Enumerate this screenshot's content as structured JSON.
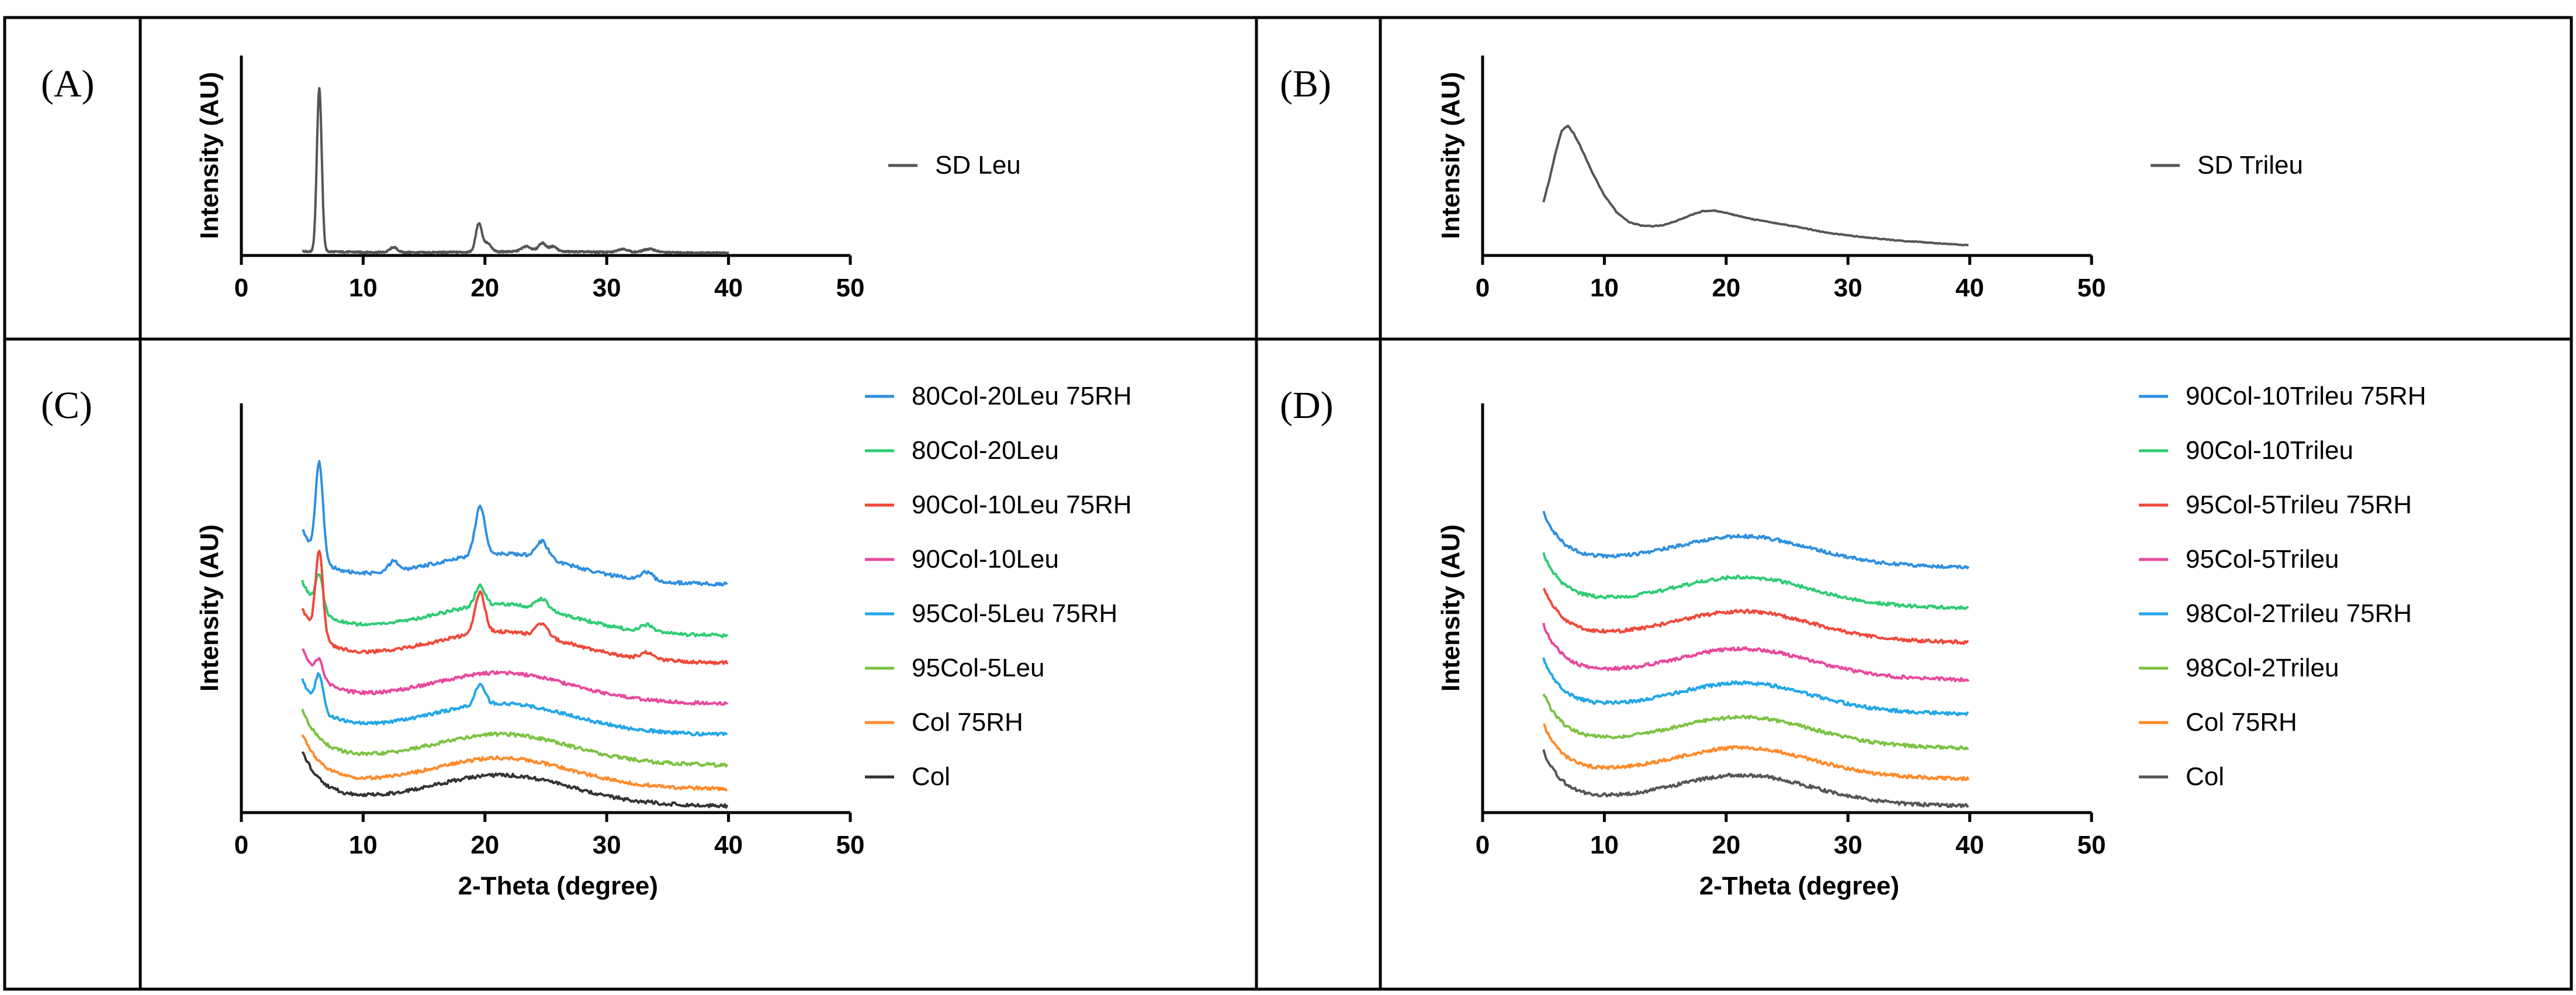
{
  "figure": {
    "panel_labels": [
      "(A)",
      "(B)",
      "(C)",
      "(D)"
    ]
  },
  "chart_data": [
    {
      "id": "A",
      "type": "line",
      "panel_label": "(A)",
      "title": "",
      "xlabel": "",
      "ylabel": "Intensity (AU)",
      "xlim": [
        0,
        50
      ],
      "xticks": [
        0,
        10,
        20,
        30,
        40,
        50
      ],
      "ylim": [
        0,
        120
      ],
      "grid": false,
      "legend_position": "right",
      "series": [
        {
          "name": "SD Leu",
          "color": "#555555",
          "x_range": [
            5,
            40
          ],
          "baseline": [
            [
              5,
              2.5
            ],
            [
              10,
              2
            ],
            [
              15,
              1.8
            ],
            [
              20,
              2.2
            ],
            [
              25,
              2.5
            ],
            [
              30,
              2
            ],
            [
              35,
              1.8
            ],
            [
              40,
              1.5
            ]
          ],
          "peaks": [
            [
              6.4,
              98,
              0.2
            ],
            [
              12.5,
              3,
              0.3
            ],
            [
              19.5,
              17,
              0.25
            ],
            [
              20.2,
              5,
              0.3
            ],
            [
              23.4,
              3,
              0.4
            ],
            [
              24.7,
              5,
              0.3
            ],
            [
              25.6,
              3,
              0.3
            ],
            [
              31.3,
              2,
              0.4
            ],
            [
              33.5,
              2,
              0.5
            ]
          ]
        }
      ]
    },
    {
      "id": "B",
      "type": "line",
      "panel_label": "(B)",
      "title": "",
      "xlabel": "",
      "ylabel": "Intensity (AU)",
      "xlim": [
        0,
        50
      ],
      "xticks": [
        0,
        10,
        20,
        30,
        40,
        50
      ],
      "ylim": [
        0,
        120
      ],
      "grid": false,
      "legend_position": "right",
      "series": [
        {
          "name": "SD Trileu",
          "color": "#555555",
          "points": [
            [
              5,
              32
            ],
            [
              5.5,
              46
            ],
            [
              6,
              62
            ],
            [
              6.5,
              75
            ],
            [
              7,
              78
            ],
            [
              7.5,
              73
            ],
            [
              8,
              66
            ],
            [
              9,
              50
            ],
            [
              10,
              36
            ],
            [
              11,
              26
            ],
            [
              12,
              20
            ],
            [
              13,
              18
            ],
            [
              14,
              17.5
            ],
            [
              15,
              18.5
            ],
            [
              16,
              21
            ],
            [
              17,
              24
            ],
            [
              18,
              26.5
            ],
            [
              19,
              27
            ],
            [
              20,
              25.5
            ],
            [
              22,
              22
            ],
            [
              24,
              19.5
            ],
            [
              26,
              17
            ],
            [
              28,
              14
            ],
            [
              30,
              12
            ],
            [
              32,
              10.5
            ],
            [
              34,
              9
            ],
            [
              36,
              8
            ],
            [
              38,
              7
            ],
            [
              40,
              6
            ]
          ]
        }
      ]
    },
    {
      "id": "C",
      "type": "line",
      "panel_label": "(C)",
      "title": "",
      "xlabel": "2-Theta (degree)",
      "ylabel": "Intensity (AU)",
      "xlim": [
        0,
        50
      ],
      "xticks": [
        0,
        10,
        20,
        30,
        40,
        50
      ],
      "ylim": [
        0,
        120
      ],
      "grid": false,
      "legend_position": "right",
      "series": [
        {
          "name": "80Col-20Leu 75RH",
          "color": "#2f8fe0",
          "offset": 65,
          "peaks": [
            [
              6.4,
              28,
              0.3
            ],
            [
              12.5,
              3,
              0.4
            ],
            [
              19.6,
              14,
              0.4
            ],
            [
              24.7,
              5,
              0.5
            ],
            [
              33.3,
              2.5,
              0.5
            ]
          ]
        },
        {
          "name": "80Col-20Leu",
          "color": "#2ecc71",
          "offset": 50,
          "peaks": [
            [
              6.4,
              10,
              0.3
            ],
            [
              19.6,
              6,
              0.4
            ],
            [
              24.7,
              3,
              0.5
            ],
            [
              33.3,
              2,
              0.5
            ]
          ]
        },
        {
          "name": "90Col-10Leu 75RH",
          "color": "#f0483a",
          "offset": 42,
          "peaks": [
            [
              6.4,
              25,
              0.3
            ],
            [
              19.6,
              12,
              0.4
            ],
            [
              24.7,
              4,
              0.5
            ],
            [
              33.3,
              2,
              0.5
            ]
          ]
        },
        {
          "name": "90Col-10Leu",
          "color": "#e8489b",
          "offset": 30,
          "peaks": [
            [
              6.4,
              5,
              0.3
            ]
          ]
        },
        {
          "name": "95Col-5Leu 75RH",
          "color": "#22a6e8",
          "offset": 21,
          "peaks": [
            [
              6.4,
              10,
              0.3
            ],
            [
              19.6,
              6,
              0.4
            ]
          ]
        },
        {
          "name": "95Col-5Leu",
          "color": "#7cc242",
          "offset": 12,
          "peaks": []
        },
        {
          "name": "Col 75RH",
          "color": "#ff8a2a",
          "offset": 5,
          "peaks": []
        },
        {
          "name": "Col",
          "color": "#333333",
          "offset": 0,
          "peaks": []
        }
      ]
    },
    {
      "id": "D",
      "type": "line",
      "panel_label": "(D)",
      "title": "",
      "xlabel": "2-Theta (degree)",
      "ylabel": "Intensity (AU)",
      "xlim": [
        0,
        50
      ],
      "xticks": [
        0,
        10,
        20,
        30,
        40,
        50
      ],
      "ylim": [
        0,
        120
      ],
      "grid": false,
      "legend_position": "right",
      "series": [
        {
          "name": "90Col-10Trileu 75RH",
          "color": "#2f8fe0",
          "offset": 70
        },
        {
          "name": "90Col-10Trileu",
          "color": "#2ecc71",
          "offset": 58
        },
        {
          "name": "95Col-5Trileu 75RH",
          "color": "#f0483a",
          "offset": 48
        },
        {
          "name": "95Col-5Trileu",
          "color": "#e8489b",
          "offset": 37
        },
        {
          "name": "98Col-2Trileu 75RH",
          "color": "#22a6e8",
          "offset": 27
        },
        {
          "name": "98Col-2Trileu",
          "color": "#7cc242",
          "offset": 17
        },
        {
          "name": "Col 75RH",
          "color": "#ff8a2a",
          "offset": 8
        },
        {
          "name": "Col",
          "color": "#555555",
          "offset": 0
        }
      ]
    }
  ]
}
